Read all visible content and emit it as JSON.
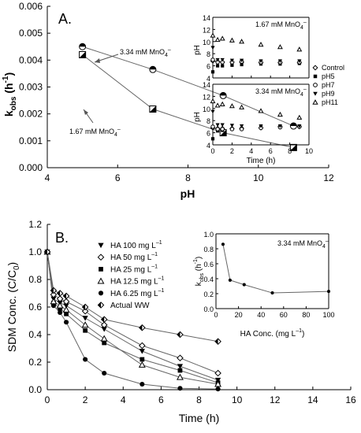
{
  "chart_data": [
    {
      "panel": "A.",
      "type": "line",
      "xlabel": "pH",
      "ylabel": "k_obs (h^-1)",
      "ylabel_main": "k",
      "ylabel_sub": "obs",
      "ylabel_unit_open": " (h",
      "ylabel_unit_sup": "-1",
      "ylabel_unit_close": ")",
      "xlim": [
        4,
        12
      ],
      "ylim": [
        0,
        0.006
      ],
      "xticks": [
        "4",
        "6",
        "8",
        "10",
        "12"
      ],
      "yticks": [
        "0.000",
        "0.001",
        "0.002",
        "0.003",
        "0.004",
        "0.005",
        "0.006"
      ],
      "series": [
        {
          "name": "3.34 mM MnO4-",
          "label_main": "3.34 mM MnO",
          "label_sub": "4",
          "label_sup": "–",
          "x": [
            5,
            7,
            9,
            11
          ],
          "y": [
            0.0045,
            0.00365,
            0.00268,
            0.00155
          ]
        },
        {
          "name": "1.67 mM MnO4-",
          "label_main": "1.67 mM MnO",
          "label_sub": "4",
          "label_sup": "–",
          "x": [
            5,
            7,
            9,
            11
          ],
          "y": [
            0.0042,
            0.00218,
            0.0013,
            0.00075
          ]
        }
      ],
      "grid": false
    },
    {
      "panel": "A. inset (top)",
      "type": "scatter",
      "annotation_main": "1.67 mM MnO",
      "annotation_sub": "4",
      "annotation_sup": "–",
      "ylabel": "pH",
      "xlim": [
        0,
        10
      ],
      "ylim": [
        4,
        14
      ],
      "xticks": [
        "0",
        "2",
        "4",
        "6",
        "8",
        "10"
      ],
      "yticks": [
        "4",
        "6",
        "8",
        "10",
        "12",
        "14"
      ],
      "x": [
        0,
        0.5,
        1,
        2,
        3,
        5,
        7,
        9
      ],
      "series": [
        {
          "name": "Control",
          "marker": "diamond-open",
          "values": [
            6.8,
            6.7,
            6.6,
            6.6,
            6.6,
            6.5,
            6.5,
            6.5
          ]
        },
        {
          "name": "pH5",
          "marker": "square-filled",
          "values": [
            5.0,
            6.0,
            6.0,
            6.1,
            6.2,
            6.3,
            6.3,
            6.4
          ]
        },
        {
          "name": "pH7",
          "marker": "circle-open",
          "values": [
            7.0,
            6.6,
            6.6,
            6.6,
            6.7,
            6.6,
            6.6,
            6.6
          ]
        },
        {
          "name": "pH9",
          "marker": "triangle-down-filled",
          "values": [
            9.0,
            7.0,
            7.0,
            6.9,
            6.9,
            6.8,
            6.8,
            6.8
          ]
        },
        {
          "name": "pH11",
          "marker": "triangle-up-open",
          "values": [
            11.0,
            10.3,
            10.5,
            10.2,
            10.0,
            9.5,
            9.1,
            8.7
          ]
        }
      ]
    },
    {
      "panel": "A. inset (bottom)",
      "type": "scatter",
      "annotation_main": "3.34 mM MnO",
      "annotation_sub": "4",
      "annotation_sup": "–",
      "xlabel": "Time (h)",
      "ylabel": "pH",
      "xlim": [
        0,
        10
      ],
      "ylim": [
        4,
        14
      ],
      "xticks": [
        "0",
        "2",
        "4",
        "6",
        "8",
        "10"
      ],
      "yticks": [
        "4",
        "6",
        "8",
        "10",
        "12",
        "14"
      ],
      "x": [
        0,
        0.5,
        1,
        2,
        3,
        5,
        7,
        9
      ],
      "series": [
        {
          "name": "Control",
          "marker": "diamond-open",
          "values": [
            6.8,
            6.7,
            6.7,
            6.7,
            6.7,
            6.8,
            7.0,
            7.0
          ]
        },
        {
          "name": "pH5",
          "marker": "square-filled",
          "values": [
            5.0,
            6.3,
            6.4,
            6.6,
            6.7,
            6.9,
            7.0,
            7.1
          ]
        },
        {
          "name": "pH7",
          "marker": "circle-open",
          "values": [
            7.0,
            6.6,
            6.6,
            6.6,
            6.6,
            6.8,
            6.9,
            7.0
          ]
        },
        {
          "name": "pH9",
          "marker": "triangle-down-filled",
          "values": [
            9.5,
            7.3,
            7.3,
            7.2,
            7.1,
            7.1,
            7.1,
            7.1
          ]
        },
        {
          "name": "pH11",
          "marker": "triangle-up-open",
          "values": [
            11.2,
            10.5,
            10.7,
            10.4,
            10.2,
            9.6,
            9.0,
            8.5
          ]
        }
      ]
    },
    {
      "panel": "B.",
      "type": "line",
      "xlabel": "Time (h)",
      "ylabel": "SDM Conc. (C/C0)",
      "ylabel_main": "SDM Conc. (C/C",
      "ylabel_sub": "0",
      "ylabel_close": ")",
      "xlim": [
        0,
        16
      ],
      "ylim": [
        0,
        1.2
      ],
      "xticks": [
        "0",
        "2",
        "4",
        "6",
        "8",
        "10",
        "12",
        "14",
        "16"
      ],
      "yticks": [
        "0.0",
        "0.2",
        "0.4",
        "0.6",
        "0.8",
        "1.0",
        "1.2"
      ],
      "x": [
        0,
        0.33,
        0.67,
        1,
        2,
        3,
        5,
        7,
        9
      ],
      "series": [
        {
          "name": "HA 100 mg L-1",
          "label_main": "HA 100 mg L",
          "label_sup": "–1",
          "marker": "triangle-down-filled",
          "values": [
            1.0,
            0.66,
            0.63,
            0.61,
            0.52,
            0.44,
            0.28,
            0.17,
            0.07
          ]
        },
        {
          "name": "HA 50 mg L-1",
          "label_main": "HA 50 mg L",
          "label_sup": "–1",
          "marker": "diamond-open",
          "values": [
            1.0,
            0.69,
            0.66,
            0.64,
            0.57,
            0.47,
            0.32,
            0.23,
            0.12
          ]
        },
        {
          "name": "HA 25 mg L-1",
          "label_main": "HA 25 mg L",
          "label_sup": "–1",
          "marker": "square-filled",
          "values": [
            1.0,
            0.63,
            0.59,
            0.55,
            0.43,
            0.34,
            0.22,
            0.14,
            0.05
          ]
        },
        {
          "name": "HA 12.5 mg L-1",
          "label_main": "HA 12.5 mg L",
          "label_sup": "–1",
          "marker": "triangle-up-open",
          "values": [
            1.0,
            0.64,
            0.61,
            0.58,
            0.47,
            0.37,
            0.18,
            0.09,
            0.04
          ]
        },
        {
          "name": "HA 6.25 mg L-1",
          "label_main": "HA 6.25 mg L",
          "label_sup": "–1",
          "marker": "circle-filled",
          "values": [
            1.0,
            0.61,
            0.56,
            0.49,
            0.22,
            0.12,
            0.04,
            0.01,
            0.005
          ]
        },
        {
          "name": "Actual WW",
          "label_main": "Actual WW",
          "label_sup": "",
          "marker": "diamond-half",
          "values": [
            1.0,
            0.72,
            0.7,
            0.68,
            0.6,
            0.51,
            0.45,
            0.4,
            0.35
          ]
        }
      ]
    },
    {
      "panel": "B. inset",
      "type": "line",
      "annotation_main": "3.34 mM MnO",
      "annotation_sub": "4",
      "annotation_sup": "–",
      "xlabel": "HA Conc. (mg L-1)",
      "xlabel_main": "HA Conc. (mg L",
      "xlabel_sup": "–1",
      "xlabel_close": ")",
      "ylabel": "k_obs (h^-1)",
      "ylabel_main": "k",
      "ylabel_sub": "obs",
      "ylabel_unit_open": " (h",
      "ylabel_unit_sup": "-1",
      "ylabel_unit_close": ")",
      "xlim": [
        0,
        100
      ],
      "ylim": [
        0,
        1.0
      ],
      "xticks": [
        "0",
        "20",
        "40",
        "60",
        "80",
        "100"
      ],
      "yticks": [
        "0.0",
        "0.2",
        "0.4",
        "0.6",
        "0.8",
        "1.0"
      ],
      "x": [
        6.25,
        12.5,
        25,
        50,
        100
      ],
      "y": [
        0.86,
        0.38,
        0.32,
        0.21,
        0.23
      ]
    }
  ]
}
